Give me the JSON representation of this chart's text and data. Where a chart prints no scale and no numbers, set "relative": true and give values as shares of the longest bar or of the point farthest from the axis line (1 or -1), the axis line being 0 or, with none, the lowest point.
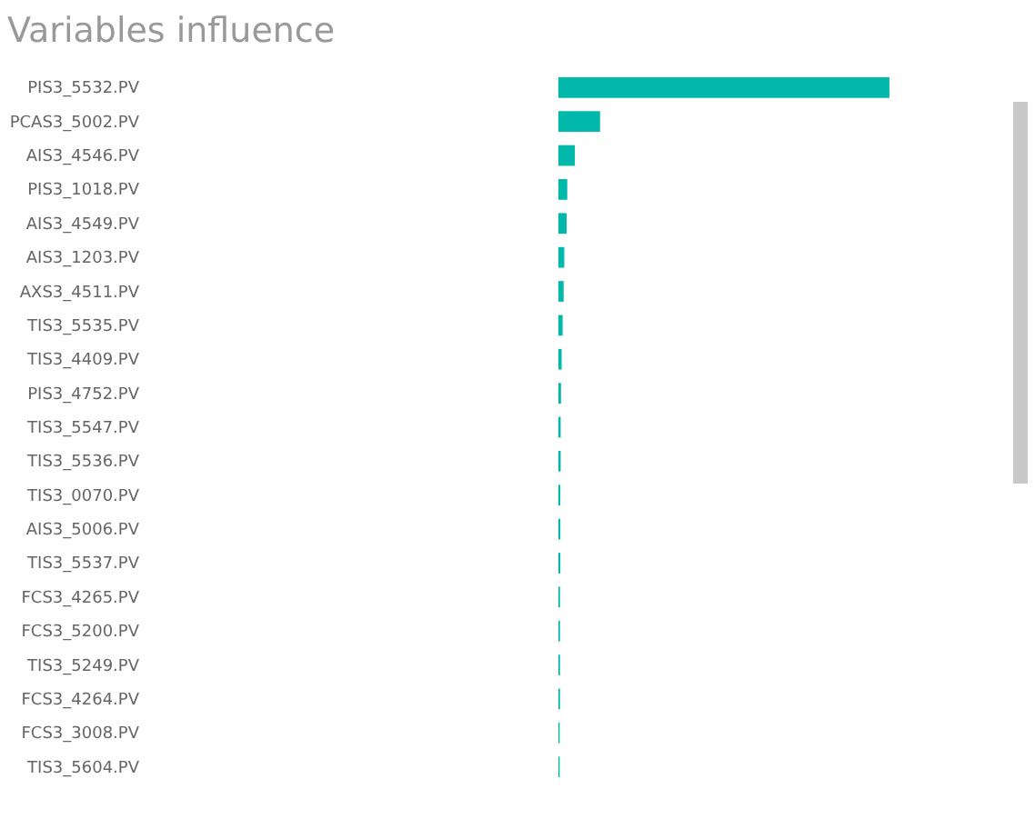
{
  "chart_data": {
    "type": "bar",
    "title": "Variables influence",
    "orientation": "horizontal",
    "relative": true,
    "color": "#01b8aa",
    "categories": [
      "PIS3_5532.PV",
      "PCAS3_5002.PV",
      "AIS3_4546.PV",
      "PIS3_1018.PV",
      "AIS3_4549.PV",
      "AIS3_1203.PV",
      "AXS3_4511.PV",
      "TIS3_5535.PV",
      "TIS3_4409.PV",
      "PIS3_4752.PV",
      "TIS3_5547.PV",
      "TIS3_5536.PV",
      "TIS3_0070.PV",
      "AIS3_5006.PV",
      "TIS3_5537.PV",
      "FCS3_4265.PV",
      "FCS3_5200.PV",
      "TIS3_5249.PV",
      "FCS3_4264.PV",
      "FCS3_3008.PV",
      "TIS3_5604.PV"
    ],
    "values": [
      1,
      0.126,
      0.05,
      0.027,
      0.025,
      0.018,
      0.016,
      0.013,
      0.01,
      0.008,
      0.007,
      0.007,
      0.006,
      0.006,
      0.006,
      0.005,
      0.005,
      0.005,
      0.005,
      0.004,
      0.004
    ]
  }
}
